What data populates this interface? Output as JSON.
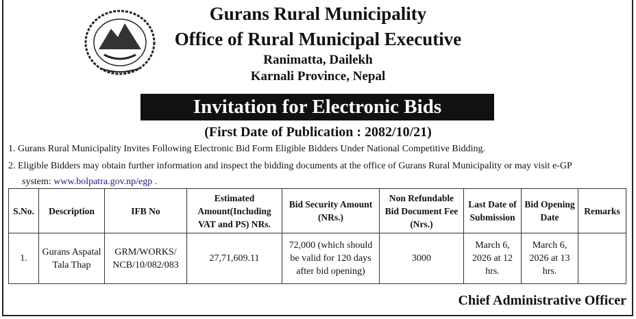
{
  "header": {
    "org": "Gurans Rural  Municipality",
    "office": "Office of Rural Municipal Executive",
    "address": "Ranimatta, Dailekh",
    "province": "Karnali Province, Nepal"
  },
  "banner": "Invitation for Electronic Bids",
  "publication": "(First Date of Publication : 2082/10/21)",
  "paragraphs": {
    "p1": "1.  Gurans Rural Municipality Invites Following Electronic Bid Form Eligible Bidders Under National Competitive Bidding.",
    "p2": "2.  Eligible Bidders may obtain further information and inspect the bidding documents at the office of Gurans Rural  Municipality or may visit e-GP",
    "p2b_prefix": "system: ",
    "link": "www.bolpatra.gov.np/egp",
    "p2b_suffix": " ."
  },
  "table": {
    "headers": [
      "S.No.",
      "Description",
      "IFB No",
      "Estimated Amount(Including VAT and PS) NRs.",
      "Bid Security Amount (NRs.)",
      "Non Refundable Bid Document Fee (Nrs.)",
      "Last Date of Submission",
      "Bid Opening Date",
      "Remarks"
    ],
    "rows": [
      [
        "1.",
        "Gurans Aspatal Tala Thap",
        "GRM/WORKS/ NCB/10/082/083",
        "27,71,609.11",
        "72,000 (which should be valid for 120 days after bid opening)",
        "3000",
        "March 6, 2026 at 12 hrs.",
        "March 6, 2026 at 13 hrs.",
        ""
      ]
    ]
  },
  "signature": "Chief Administrative Officer"
}
